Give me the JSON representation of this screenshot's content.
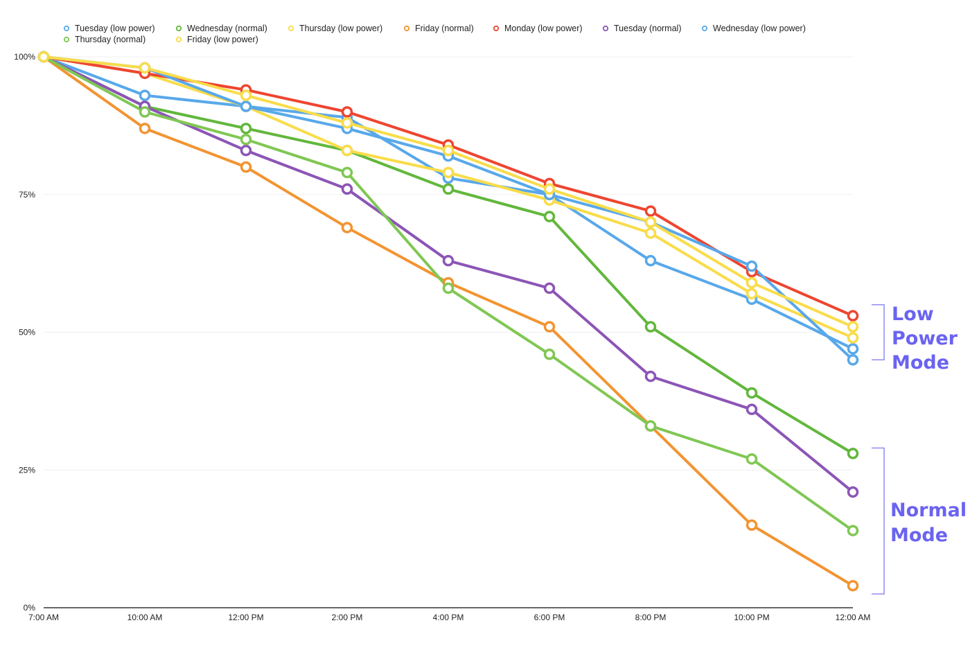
{
  "chart_data": {
    "type": "line",
    "title": "",
    "xlabel": "",
    "ylabel": "",
    "ylim": [
      0,
      100
    ],
    "grid": true,
    "legend_position": "top-left",
    "categories": [
      "7:00 AM",
      "10:00 AM",
      "12:00 PM",
      "2:00 PM",
      "4:00 PM",
      "6:00 PM",
      "8:00 PM",
      "10:00 PM",
      "12:00 AM"
    ],
    "y_ticks": [
      {
        "value": 0,
        "label": "0%"
      },
      {
        "value": 25,
        "label": "25%"
      },
      {
        "value": 50,
        "label": "50%"
      },
      {
        "value": 75,
        "label": "75%"
      },
      {
        "value": 100,
        "label": "100%"
      }
    ],
    "series": [
      {
        "name": "Tuesday (low power)",
        "color": "#58a8ea",
        "values": [
          100,
          93,
          91,
          89,
          78,
          75,
          63,
          56,
          47
        ]
      },
      {
        "name": "Wednesday (normal)",
        "color": "#62b73c",
        "values": [
          100,
          91,
          87,
          83,
          76,
          71,
          51,
          39,
          28
        ]
      },
      {
        "name": "Thursday (low power)",
        "color": "#f9dc4a",
        "values": [
          100,
          97,
          91,
          83,
          79,
          74,
          68,
          57,
          49
        ]
      },
      {
        "name": "Friday (normal)",
        "color": "#f29432",
        "values": [
          100,
          87,
          80,
          69,
          59,
          51,
          33,
          15,
          4
        ]
      },
      {
        "name": "Monday (low power)",
        "color": "#ee4530",
        "values": [
          100,
          97,
          94,
          90,
          84,
          77,
          72,
          61,
          53
        ]
      },
      {
        "name": "Tuesday (normal)",
        "color": "#8c55b6",
        "values": [
          100,
          91,
          83,
          76,
          63,
          58,
          42,
          36,
          21
        ]
      },
      {
        "name": "Wednesday (low power)",
        "color": "#58a8ea",
        "values": [
          100,
          98,
          91,
          87,
          82,
          75,
          70,
          62,
          45
        ]
      },
      {
        "name": "Thursday (normal)",
        "color": "#80c754",
        "values": [
          100,
          90,
          85,
          79,
          58,
          46,
          33,
          27,
          14
        ]
      },
      {
        "name": "Friday (low power)",
        "color": "#f9dc4a",
        "values": [
          100,
          98,
          93,
          88,
          83,
          76,
          70,
          59,
          51
        ]
      }
    ],
    "annotations": [
      {
        "text": [
          "Low",
          "Power",
          "Mode"
        ],
        "range": [
          45,
          55
        ],
        "color": "#6b63f0"
      },
      {
        "text": [
          "Normal",
          "Mode"
        ],
        "range": [
          2.5,
          29
        ],
        "color": "#6b63f0"
      }
    ]
  }
}
